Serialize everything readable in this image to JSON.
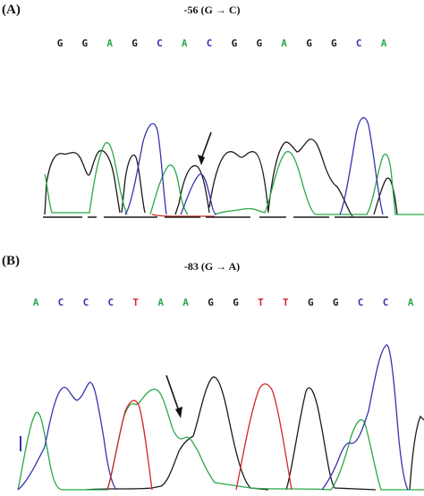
{
  "colors": {
    "G": "#1a1a1a",
    "A": "#2aa84a",
    "C": "#3535b0",
    "T": "#d0282c"
  },
  "panels": [
    {
      "label": "(A)",
      "mutation": "-56 (G → C)",
      "bases": [
        "G",
        "G",
        "A",
        "G",
        "C",
        "A",
        "C",
        "G",
        "G",
        "A",
        "G",
        "G",
        "C",
        "A"
      ],
      "arrow_icon": "arrow-icon"
    },
    {
      "label": "(B)",
      "mutation": "-83 (G → A)",
      "bases": [
        "A",
        "C",
        "C",
        "C",
        "T",
        "A",
        "A",
        "G",
        "G",
        "T",
        "T",
        "G",
        "G",
        "C",
        "C",
        "A"
      ],
      "arrow_icon": "arrow-icon"
    }
  ]
}
